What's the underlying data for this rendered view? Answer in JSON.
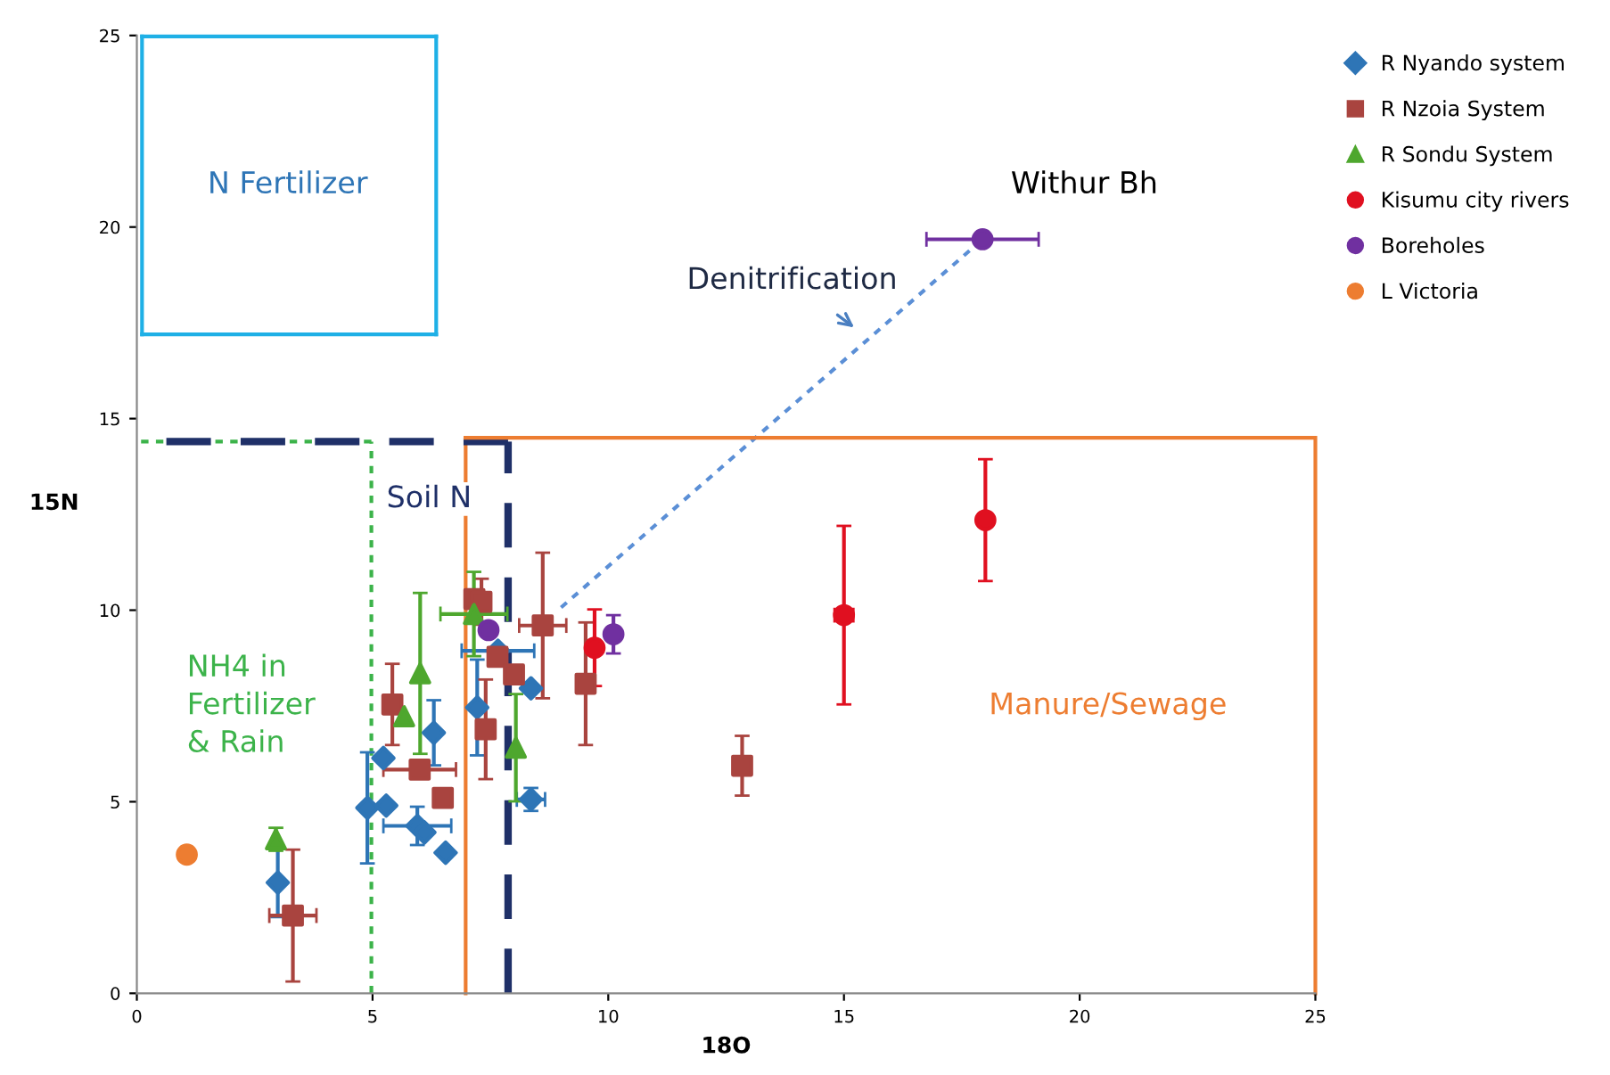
{
  "chart_data": {
    "type": "scatter",
    "xlabel": "18O",
    "ylabel": "15N",
    "xlim": [
      0,
      25
    ],
    "ylim": [
      0,
      25
    ],
    "xticks": [
      0,
      5,
      10,
      15,
      20,
      25
    ],
    "yticks": [
      0,
      5,
      10,
      15,
      20,
      25
    ],
    "grid": false,
    "legend": "top right",
    "series": [
      {
        "name": "R Nyando system",
        "marker": "diamond",
        "color": "#2e75b6",
        "x": [
          2.99,
          4.89,
          5.29,
          5.23,
          5.95,
          6.1,
          6.3,
          6.55,
          7.22,
          7.66,
          8.36,
          8.36
        ],
        "values": [
          2.89,
          4.84,
          4.9,
          6.14,
          4.37,
          4.2,
          6.8,
          3.67,
          7.46,
          8.94,
          7.96,
          5.06
        ],
        "errors": [
          0.9,
          1.45,
          null,
          null,
          0.5,
          null,
          0.85,
          null,
          1.25,
          null,
          null,
          0.3
        ],
        "xerrors": [
          null,
          null,
          null,
          null,
          0.72,
          null,
          null,
          null,
          null,
          0.77,
          null,
          0.3
        ]
      },
      {
        "name": "R Nzoia System",
        "marker": "square",
        "color": "#a9443f",
        "x": [
          3.31,
          5.42,
          6.0,
          6.49,
          7.16,
          7.31,
          7.4,
          7.65,
          8.0,
          8.61,
          9.52,
          12.84
        ],
        "values": [
          2.03,
          7.54,
          5.84,
          5.1,
          10.29,
          10.22,
          6.89,
          8.78,
          8.32,
          9.6,
          8.08,
          5.94
        ],
        "errors": [
          1.72,
          1.06,
          null,
          null,
          null,
          0.6,
          1.3,
          null,
          null,
          1.9,
          1.6,
          0.78
        ],
        "xerrors": [
          0.5,
          null,
          0.77,
          null,
          null,
          null,
          null,
          null,
          null,
          0.5,
          null,
          null
        ]
      },
      {
        "name": "R Sondu System",
        "marker": "triangle",
        "color": "#4ea72e",
        "x": [
          2.95,
          5.67,
          6.01,
          7.15,
          8.04
        ],
        "values": [
          4.02,
          7.23,
          8.35,
          9.9,
          6.41
        ],
        "errors": [
          0.3,
          null,
          2.1,
          1.1,
          1.4
        ],
        "xerrors": [
          null,
          null,
          null,
          0.71,
          null
        ]
      },
      {
        "name": "Kisumu city rivers",
        "marker": "circle",
        "color": "#e01020",
        "x": [
          9.71,
          15.0,
          18.0
        ],
        "values": [
          9.02,
          9.87,
          12.35
        ],
        "errors": [
          1.0,
          2.33,
          1.59
        ],
        "xerrors": [
          null,
          0.2,
          null
        ]
      },
      {
        "name": "Boreholes",
        "marker": "circle",
        "color": "#7030a0",
        "x": [
          7.46,
          10.11,
          17.94
        ],
        "values": [
          9.48,
          9.37,
          19.68
        ],
        "errors": [
          null,
          0.5,
          null
        ],
        "xerrors": [
          null,
          null,
          1.19
        ]
      },
      {
        "name": "L Victoria",
        "marker": "circle",
        "color": "#ed7d31",
        "x": [
          1.06
        ],
        "values": [
          3.62
        ]
      },
      {
        "type": "line",
        "line_style": "dotted",
        "color": "#5b8fd6",
        "x": [
          9.0,
          17.94
        ],
        "values": [
          10.07,
          19.68
        ]
      },
      {
        "type": "line",
        "line_style": "solid",
        "color": "#ed7d31",
        "x": [
          6.97,
          25
        ],
        "values": [
          14.5,
          14.5
        ]
      }
    ],
    "annotations": [
      "N Fertilizer",
      "Withur Bh",
      "Denitrification",
      "Soil N",
      "NH4 in\nFertilizer\n& Rain",
      "Manure/Sewage"
    ]
  }
}
